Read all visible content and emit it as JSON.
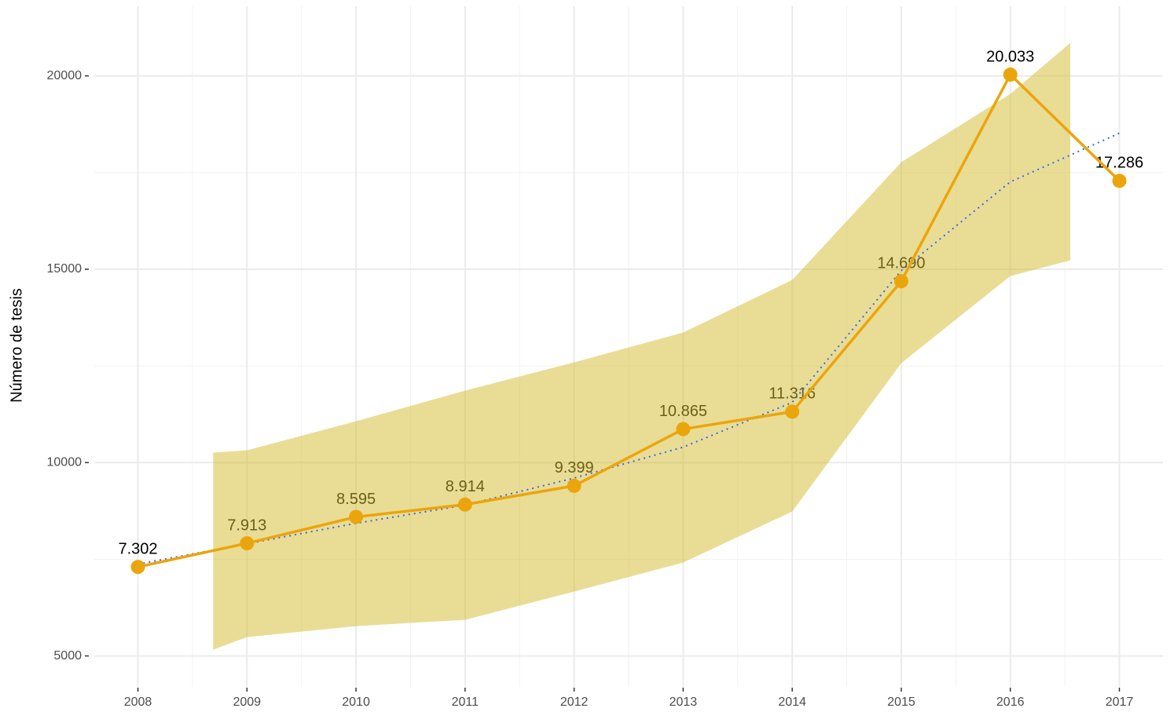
{
  "chart_data": {
    "type": "line",
    "ylabel": "Número de tesis",
    "x": [
      2008,
      2009,
      2010,
      2011,
      2012,
      2013,
      2014,
      2015,
      2016,
      2017
    ],
    "series": [
      {
        "name": "Número de tesis",
        "color": "#eba50c",
        "values": [
          7302,
          7913,
          8595,
          8914,
          9399,
          10865,
          11316,
          14690,
          20033,
          17286
        ],
        "value_labels": [
          "7.302",
          "7.913",
          "8.595",
          "8.914",
          "9.399",
          "10.865",
          "11.316",
          "14.690",
          "20.033",
          "17.286"
        ]
      }
    ],
    "smooth": {
      "color": "#3366ff",
      "x": [
        2008,
        2009,
        2010,
        2011,
        2012,
        2013,
        2014,
        2015,
        2016,
        2017
      ],
      "values": [
        7375,
        7900,
        8430,
        8900,
        9600,
        10400,
        11556,
        14966,
        17260,
        18518
      ]
    },
    "band": {
      "color": "#d4bb2c",
      "x": [
        2008.69,
        2009,
        2010,
        2011,
        2012,
        2013,
        2014,
        2015,
        2016,
        2016.55
      ],
      "upper": [
        10257,
        10318,
        11069,
        11861,
        12591,
        13363,
        14723,
        17768,
        19533,
        20853
      ],
      "lower": [
        5162,
        5487,
        5771,
        5934,
        6665,
        7416,
        8735,
        12571,
        14824,
        15230
      ]
    },
    "xlim": [
      2007.6,
      2017.4
    ],
    "ylim": [
      4200,
      21800
    ],
    "xticks": [
      2008,
      2009,
      2010,
      2011,
      2012,
      2013,
      2014,
      2015,
      2016,
      2017
    ],
    "yticks": [
      5000,
      10000,
      15000,
      20000
    ],
    "x_minor_grid": [
      2008.5,
      2009.5,
      2010.5,
      2011.5,
      2012.5,
      2013.5,
      2014.5,
      2015.5,
      2016.5
    ],
    "y_minor_grid": [
      7500,
      12500,
      17500
    ],
    "grid": true
  }
}
